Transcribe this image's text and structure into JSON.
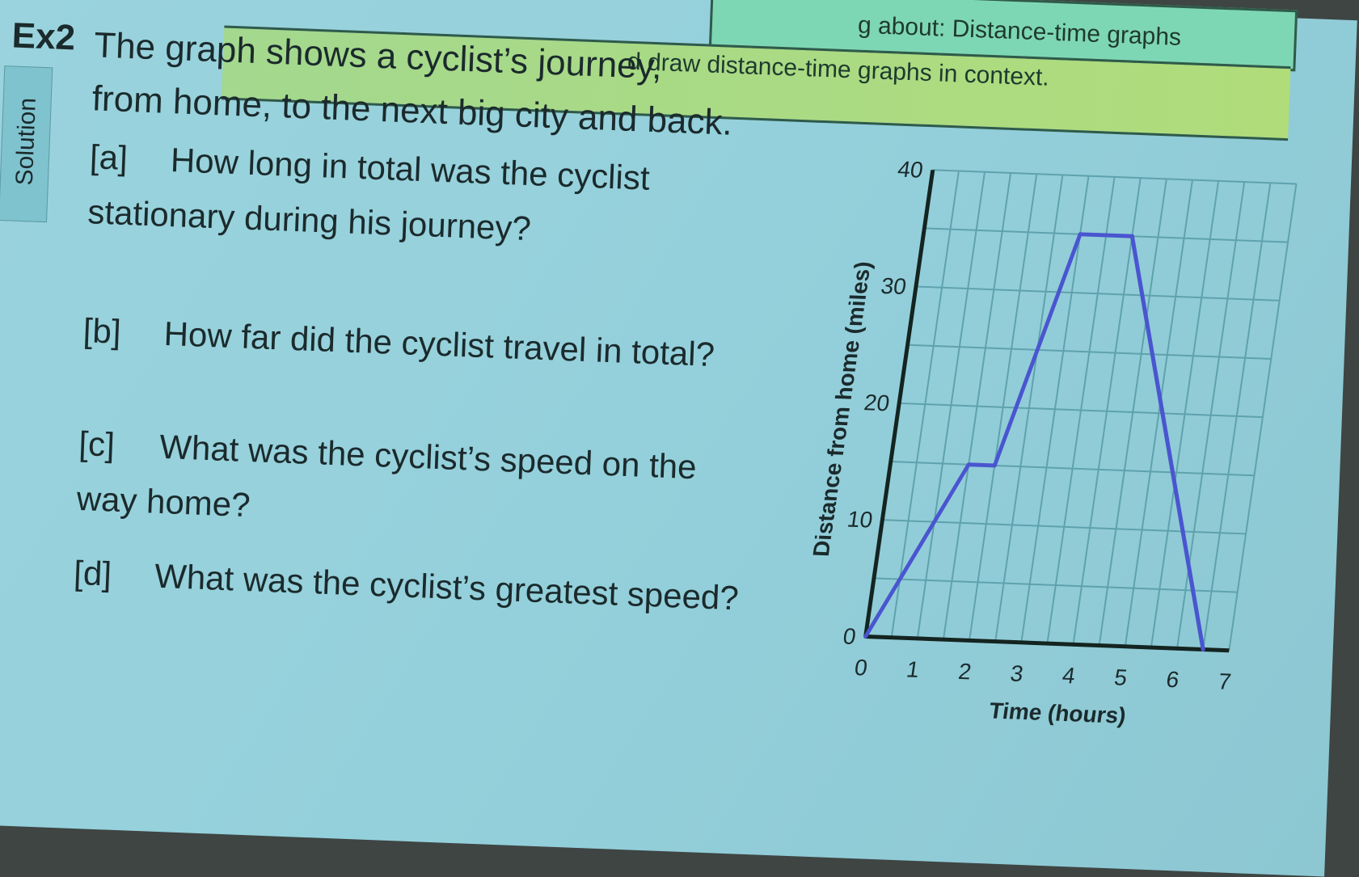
{
  "header": {
    "topic": "g about: Distance-time graphs",
    "objective": "d draw distance-time graphs in context."
  },
  "example": {
    "label": "Ex2",
    "intro": "The graph shows a cyclist’s journey, from home, to the next big city and back.",
    "solution_tab": "Solution"
  },
  "questions": [
    {
      "label": "[a]",
      "text": "How long in total was the cyclist stationary during his journey?"
    },
    {
      "label": "[b]",
      "text": "How far did the cyclist travel in total?"
    },
    {
      "label": "[c]",
      "text": "What was the cyclist’s speed on the way home?"
    },
    {
      "label": "[d]",
      "text": "What was the cyclist’s greatest speed?"
    }
  ],
  "chart_data": {
    "type": "line",
    "xlabel": "Time (hours)",
    "ylabel": "Distance from home (miles)",
    "xlim": [
      0,
      7
    ],
    "ylim": [
      0,
      40
    ],
    "xticks": [
      0,
      1,
      2,
      3,
      4,
      5,
      6,
      7
    ],
    "yticks": [
      0,
      10,
      20,
      30,
      40
    ],
    "grid": true,
    "grid_x_step": 0.5,
    "grid_y_step": 5,
    "series": [
      {
        "x": [
          0,
          1.5,
          2,
          3,
          4,
          6.5
        ],
        "y": [
          0,
          15,
          15,
          35,
          35,
          0
        ],
        "color": "#4a55d0"
      }
    ]
  }
}
